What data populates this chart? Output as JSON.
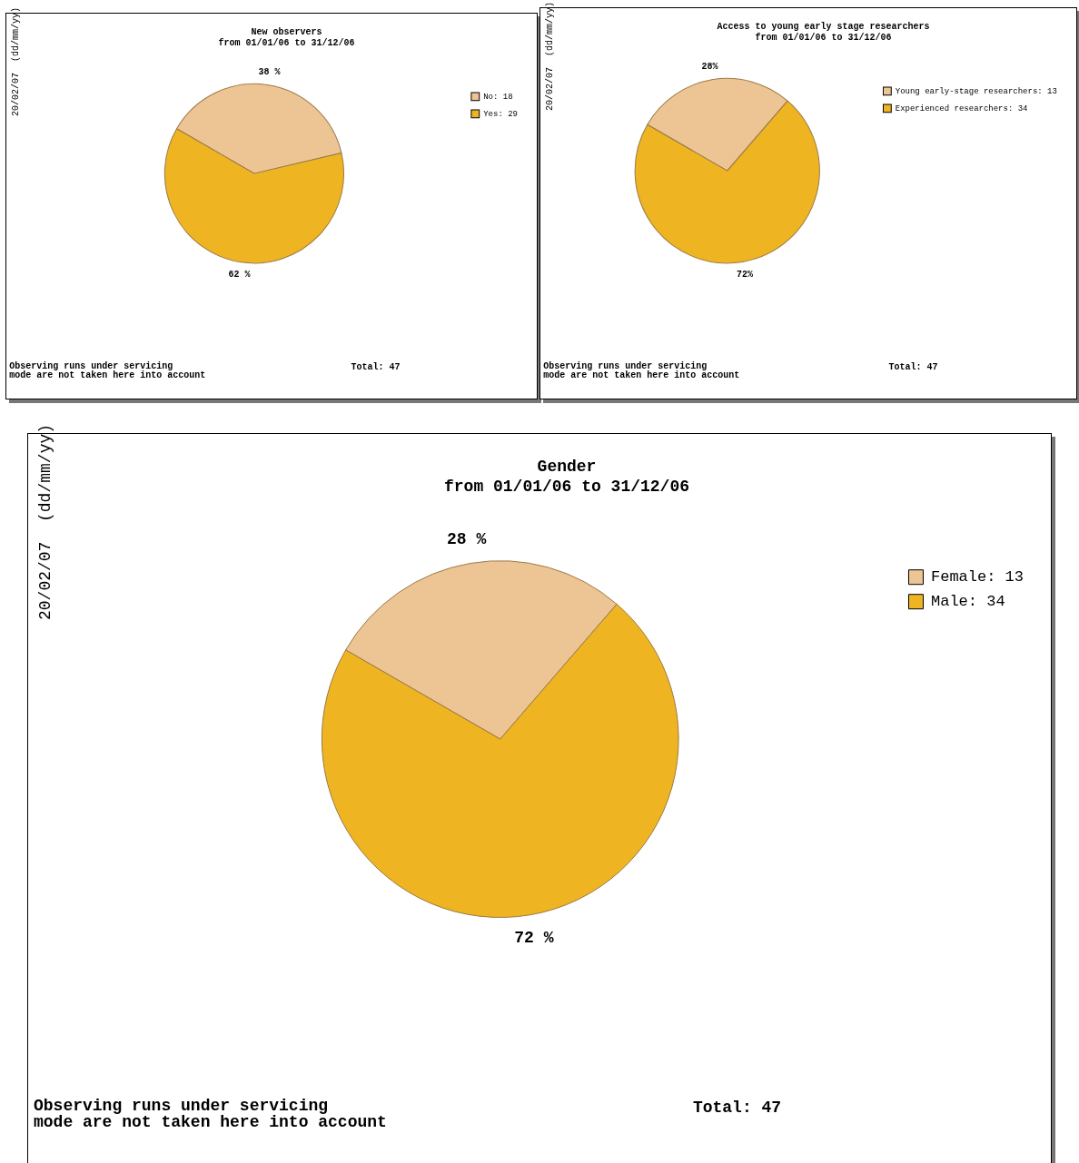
{
  "chart_data": [
    {
      "type": "pie",
      "title": "New observers",
      "subtitle": "from 01/01/06 to 31/12/06",
      "categories": [
        "No: 18",
        "Yes: 29"
      ],
      "values": [
        38,
        62
      ],
      "colors": [
        "#edc493",
        "#eeb422"
      ],
      "value_labels": [
        "38 %",
        "62 %"
      ],
      "legend": "top right",
      "annotations": [
        "20/02/07  (dd/mm/yy)",
        "Observing runs under servicing\nmode are not taken here into account",
        "Total: 47"
      ]
    },
    {
      "type": "pie",
      "title": "Access to young early stage researchers",
      "subtitle": "from 01/01/06 to 31/12/06",
      "categories": [
        "Young early-stage researchers: 13",
        "Experienced researchers: 34"
      ],
      "values": [
        28,
        72
      ],
      "colors": [
        "#edc493",
        "#eeb422"
      ],
      "value_labels": [
        "28%",
        "72%"
      ],
      "legend": "top right",
      "annotations": [
        "20/02/07  (dd/mm/yy)",
        "Observing runs under servicing\nmode are not taken here into account",
        "Total: 47"
      ]
    },
    {
      "type": "pie",
      "title": "Gender",
      "subtitle": "from 01/01/06 to 31/12/06",
      "categories": [
        "Female: 13",
        "Male: 34"
      ],
      "values": [
        28,
        72
      ],
      "colors": [
        "#edc493",
        "#eeb422"
      ],
      "value_labels": [
        "28 %",
        "72 %"
      ],
      "legend": "top right",
      "annotations": [
        "20/02/07  (dd/mm/yy)",
        "Observing runs under servicing\nmode are not taken here into account",
        "Total: 47"
      ]
    }
  ]
}
